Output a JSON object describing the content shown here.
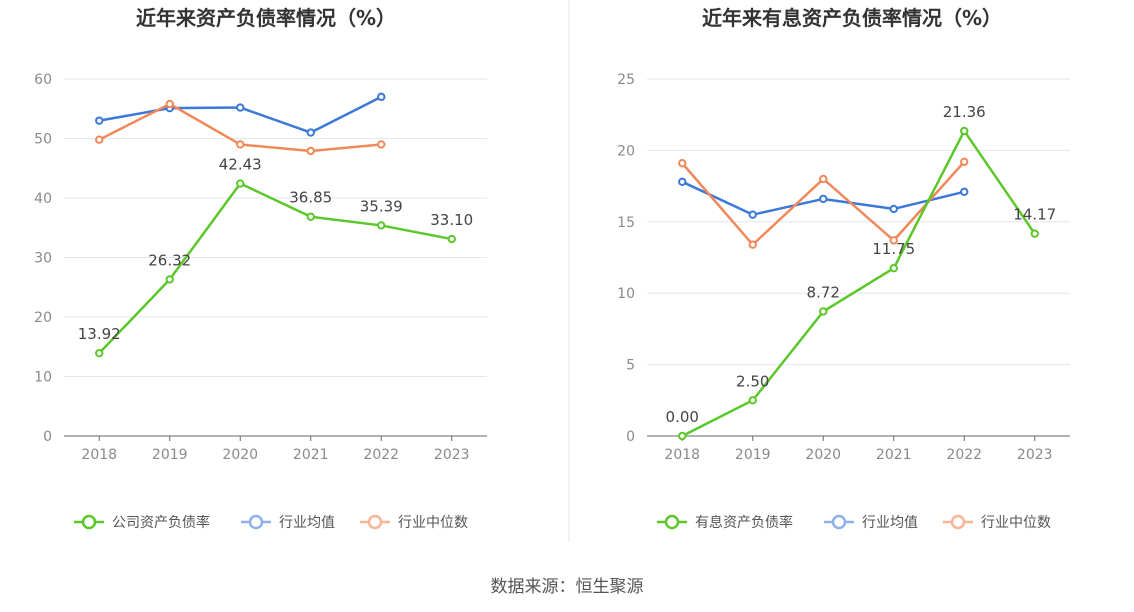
{
  "source_text": "数据来源：恒生聚源",
  "chart_data": [
    {
      "type": "line",
      "title": "近年来资产负债率情况（%）",
      "categories": [
        "2018",
        "2019",
        "2020",
        "2021",
        "2022",
        "2023"
      ],
      "ylim": [
        0,
        60
      ],
      "yticks": [
        0,
        10,
        20,
        30,
        40,
        50,
        60
      ],
      "series": [
        {
          "name": "公司资产负债率",
          "color": "#5cc72a",
          "values": [
            13.92,
            26.32,
            42.43,
            36.85,
            35.39,
            33.1
          ],
          "labels": [
            "13.92",
            "26.32",
            "42.43",
            "36.85",
            "35.39",
            "33.10"
          ],
          "show_labels": true
        },
        {
          "name": "行业均值",
          "color": "#3c78d8",
          "values": [
            53.0,
            55.1,
            55.2,
            51.0,
            57.0,
            null
          ],
          "show_labels": false
        },
        {
          "name": "行业中位数",
          "color": "#f0885a",
          "values": [
            49.8,
            55.8,
            49.0,
            47.9,
            49.0,
            null
          ],
          "show_labels": false
        }
      ]
    },
    {
      "type": "line",
      "title": "近年来有息资产负债率情况（%）",
      "categories": [
        "2018",
        "2019",
        "2020",
        "2021",
        "2022",
        "2023"
      ],
      "ylim": [
        0,
        25
      ],
      "yticks": [
        0,
        5,
        10,
        15,
        20,
        25
      ],
      "series": [
        {
          "name": "有息资产负债率",
          "color": "#5cc72a",
          "values": [
            0.0,
            2.5,
            8.72,
            11.75,
            21.36,
            14.17
          ],
          "labels": [
            "0.00",
            "2.50",
            "8.72",
            "11.75",
            "21.36",
            "14.17"
          ],
          "show_labels": true
        },
        {
          "name": "行业均值",
          "color": "#3c78d8",
          "values": [
            17.8,
            15.5,
            16.6,
            15.9,
            17.1,
            null
          ],
          "show_labels": false
        },
        {
          "name": "行业中位数",
          "color": "#f0885a",
          "values": [
            19.1,
            13.4,
            18.0,
            13.7,
            19.2,
            null
          ],
          "show_labels": false
        }
      ]
    }
  ]
}
